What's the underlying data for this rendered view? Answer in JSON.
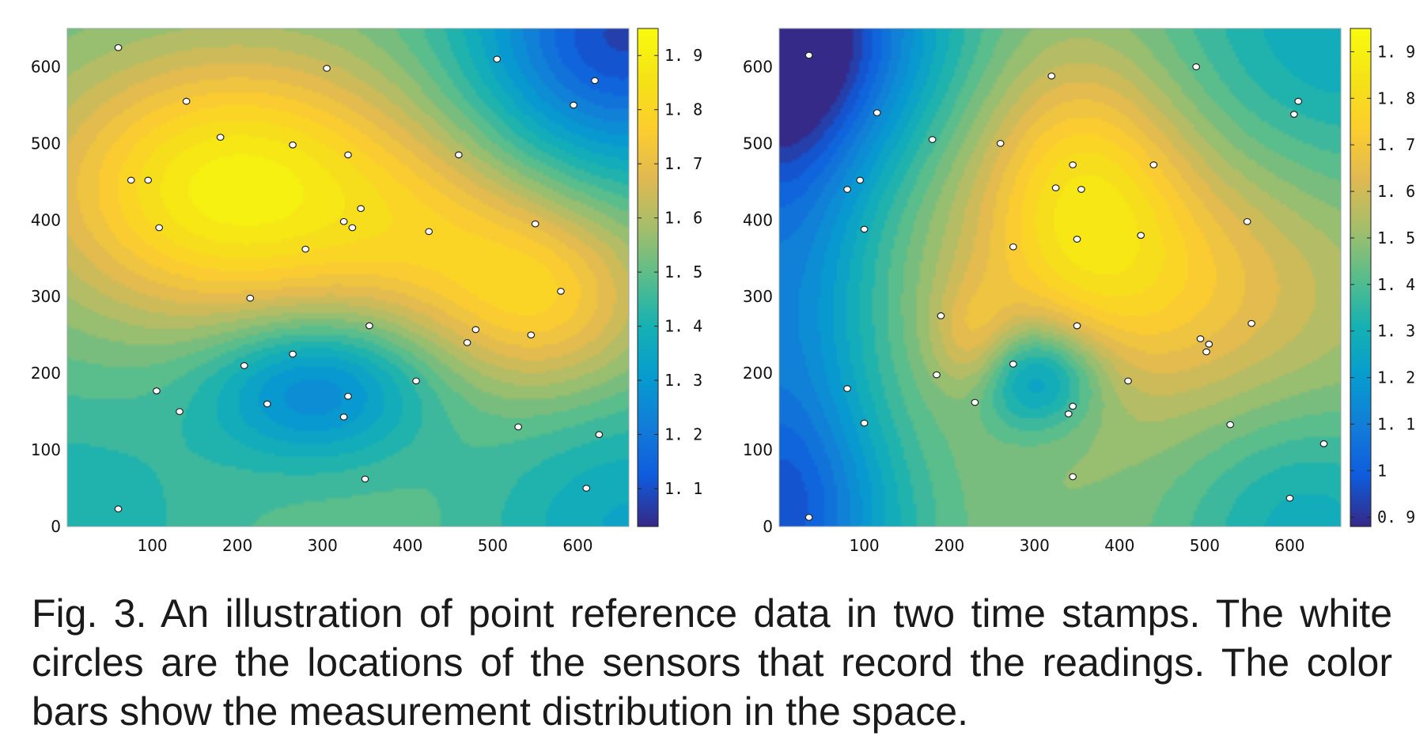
{
  "chart_data": [
    {
      "type": "heatmap",
      "title": "",
      "xlabel": "",
      "ylabel": "",
      "xlim": [
        0,
        660
      ],
      "ylim": [
        0,
        650
      ],
      "xticks": [
        100,
        200,
        300,
        400,
        500,
        600
      ],
      "yticks": [
        0,
        100,
        200,
        300,
        400,
        500,
        600
      ],
      "colorbar": {
        "range": [
          1.03,
          1.95
        ],
        "ticks": [
          1.1,
          1.2,
          1.3,
          1.4,
          1.5,
          1.6,
          1.7,
          1.8,
          1.9
        ],
        "tick_labels": [
          "1. 1",
          "1. 2",
          "1. 3",
          "1. 4",
          "1. 5",
          "1. 6",
          "1. 7",
          "1. 8",
          "1. 9"
        ],
        "colormap": "parula"
      },
      "field": {
        "base": 1.5,
        "bumps": [
          {
            "x": 200,
            "y": 440,
            "amplitude": 0.42,
            "sigma_x": 155,
            "sigma_y": 120
          },
          {
            "x": 560,
            "y": 300,
            "amplitude": 0.26,
            "sigma_x": 90,
            "sigma_y": 90
          },
          {
            "x": 430,
            "y": 380,
            "amplitude": 0.12,
            "sigma_x": 90,
            "sigma_y": 90
          },
          {
            "x": 290,
            "y": 180,
            "amplitude": -0.27,
            "sigma_x": 90,
            "sigma_y": 65
          },
          {
            "x": 650,
            "y": 640,
            "amplitude": -0.42,
            "sigma_x": 120,
            "sigma_y": 120
          },
          {
            "x": 0,
            "y": 0,
            "amplitude": -0.1,
            "sigma_x": 130,
            "sigma_y": 130
          },
          {
            "x": 660,
            "y": 0,
            "amplitude": -0.15,
            "sigma_x": 120,
            "sigma_y": 120
          }
        ]
      },
      "sensors": [
        [
          60,
          625
        ],
        [
          305,
          598
        ],
        [
          505,
          610
        ],
        [
          620,
          582
        ],
        [
          595,
          550
        ],
        [
          140,
          555
        ],
        [
          180,
          508
        ],
        [
          75,
          452
        ],
        [
          95,
          452
        ],
        [
          265,
          498
        ],
        [
          330,
          485
        ],
        [
          460,
          485
        ],
        [
          345,
          415
        ],
        [
          325,
          398
        ],
        [
          335,
          390
        ],
        [
          108,
          390
        ],
        [
          280,
          362
        ],
        [
          425,
          385
        ],
        [
          550,
          395
        ],
        [
          215,
          298
        ],
        [
          580,
          307
        ],
        [
          355,
          262
        ],
        [
          480,
          257
        ],
        [
          470,
          240
        ],
        [
          545,
          250
        ],
        [
          265,
          225
        ],
        [
          208,
          210
        ],
        [
          410,
          190
        ],
        [
          105,
          177
        ],
        [
          235,
          160
        ],
        [
          330,
          170
        ],
        [
          325,
          143
        ],
        [
          132,
          150
        ],
        [
          530,
          130
        ],
        [
          625,
          120
        ],
        [
          350,
          62
        ],
        [
          610,
          50
        ],
        [
          60,
          23
        ]
      ]
    },
    {
      "type": "heatmap",
      "title": "",
      "xlabel": "",
      "ylabel": "",
      "xlim": [
        0,
        660
      ],
      "ylim": [
        0,
        650
      ],
      "xticks": [
        100,
        200,
        300,
        400,
        500,
        600
      ],
      "yticks": [
        0,
        100,
        200,
        300,
        400,
        500,
        600
      ],
      "colorbar": {
        "range": [
          0.88,
          1.95
        ],
        "ticks": [
          0.9,
          1.0,
          1.1,
          1.2,
          1.3,
          1.4,
          1.5,
          1.6,
          1.7,
          1.8,
          1.9
        ],
        "tick_labels": [
          "0. 9",
          "1",
          "1. 1",
          "1. 2",
          "1. 3",
          "1. 4",
          "1. 5",
          "1. 6",
          "1. 7",
          "1. 8",
          "1. 9"
        ],
        "colormap": "parula"
      },
      "field": {
        "base": 1.48,
        "bumps": [
          {
            "x": 355,
            "y": 450,
            "amplitude": 0.28,
            "sigma_x": 85,
            "sigma_y": 120
          },
          {
            "x": 450,
            "y": 320,
            "amplitude": 0.23,
            "sigma_x": 150,
            "sigma_y": 120
          },
          {
            "x": 230,
            "y": 235,
            "amplitude": 0.18,
            "sigma_x": 35,
            "sigma_y": 55
          },
          {
            "x": 300,
            "y": 195,
            "amplitude": -0.34,
            "sigma_x": 55,
            "sigma_y": 50
          },
          {
            "x": 0,
            "y": 650,
            "amplitude": -0.6,
            "sigma_x": 130,
            "sigma_y": 130
          },
          {
            "x": 0,
            "y": 300,
            "amplitude": -0.35,
            "sigma_x": 80,
            "sigma_y": 300
          },
          {
            "x": 0,
            "y": 0,
            "amplitude": -0.3,
            "sigma_x": 110,
            "sigma_y": 110
          },
          {
            "x": 660,
            "y": 650,
            "amplitude": -0.22,
            "sigma_x": 150,
            "sigma_y": 150
          },
          {
            "x": 620,
            "y": 0,
            "amplitude": -0.2,
            "sigma_x": 110,
            "sigma_y": 110
          }
        ]
      },
      "sensors": [
        [
          35,
          615
        ],
        [
          320,
          588
        ],
        [
          490,
          600
        ],
        [
          115,
          540
        ],
        [
          610,
          555
        ],
        [
          605,
          538
        ],
        [
          180,
          505
        ],
        [
          260,
          500
        ],
        [
          345,
          472
        ],
        [
          440,
          472
        ],
        [
          95,
          452
        ],
        [
          80,
          440
        ],
        [
          325,
          442
        ],
        [
          355,
          440
        ],
        [
          100,
          388
        ],
        [
          275,
          365
        ],
        [
          350,
          375
        ],
        [
          425,
          380
        ],
        [
          550,
          398
        ],
        [
          190,
          275
        ],
        [
          350,
          262
        ],
        [
          555,
          265
        ],
        [
          495,
          245
        ],
        [
          505,
          238
        ],
        [
          502,
          228
        ],
        [
          275,
          212
        ],
        [
          185,
          198
        ],
        [
          80,
          180
        ],
        [
          410,
          190
        ],
        [
          230,
          162
        ],
        [
          345,
          157
        ],
        [
          340,
          147
        ],
        [
          100,
          135
        ],
        [
          530,
          133
        ],
        [
          640,
          108
        ],
        [
          345,
          65
        ],
        [
          600,
          37
        ],
        [
          35,
          12
        ]
      ]
    }
  ],
  "caption": "Fig. 3. An illustration of point reference data in two time stamps. The white circles are the locations of the sensors that record the readings. The color bars show the measurement distribution in the space."
}
